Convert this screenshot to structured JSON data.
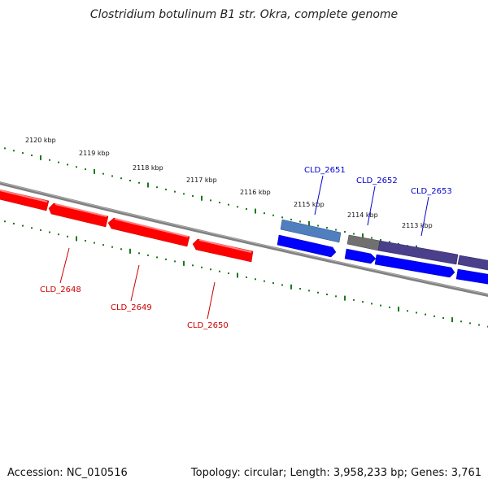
{
  "title": "Clostridium botulinum B1 str. Okra, complete genome",
  "footer": {
    "accession": "Accession: NC_010516",
    "stats": "Topology: circular; Length: 3,958,233 bp; Genes: 3,761"
  },
  "colors": {
    "backbone": "#808080",
    "ticks": "#1a7a1a",
    "reverse_gene": "#ff0000",
    "forward_gene": "#0000ff",
    "reverse_label": "#cc0000",
    "forward_label": "#0000cc"
  },
  "scale_labels": [
    "2120 kbp",
    "2119 kbp",
    "2118 kbp",
    "2117 kbp",
    "2116 kbp",
    "2115 kbp",
    "2114 kbp",
    "2113 kbp"
  ],
  "genes": {
    "reverse": [
      "CLD_2648",
      "CLD_2649",
      "CLD_2650"
    ],
    "forward": [
      "CLD_2651",
      "CLD_2652",
      "CLD_2653"
    ]
  }
}
